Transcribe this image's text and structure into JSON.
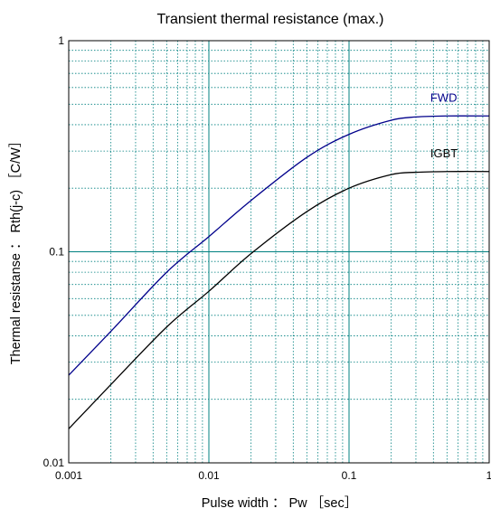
{
  "chart_data": {
    "type": "line",
    "title": "Transient thermal resistance (max.)",
    "xlabel": "Pulse width ： Pw ［sec］",
    "ylabel": "Thermal resistanse ： Rth(j-c) ［C/W］",
    "xscale": "log",
    "yscale": "log",
    "xlim": [
      0.001,
      1
    ],
    "ylim": [
      0.01,
      1
    ],
    "x_ticks": [
      "0.001",
      "0.01",
      "0.1",
      "1"
    ],
    "y_ticks": [
      "0.01",
      "0.1",
      "1"
    ],
    "grid": true,
    "colors": {
      "major_grid": "#008080",
      "minor_grid": "#008080",
      "axes": "#000000"
    },
    "series": [
      {
        "name": "FWD",
        "color": "#00008B",
        "x": [
          0.001,
          0.002,
          0.005,
          0.01,
          0.02,
          0.05,
          0.1,
          0.2,
          0.3,
          0.5,
          1
        ],
        "y": [
          0.026,
          0.042,
          0.08,
          0.118,
          0.175,
          0.28,
          0.36,
          0.42,
          0.435,
          0.44,
          0.44
        ]
      },
      {
        "name": "IGBT",
        "color": "#000000",
        "x": [
          0.001,
          0.002,
          0.005,
          0.01,
          0.02,
          0.05,
          0.1,
          0.2,
          0.3,
          0.5,
          1
        ],
        "y": [
          0.0145,
          0.0235,
          0.044,
          0.065,
          0.098,
          0.155,
          0.2,
          0.232,
          0.238,
          0.24,
          0.24
        ]
      }
    ]
  }
}
